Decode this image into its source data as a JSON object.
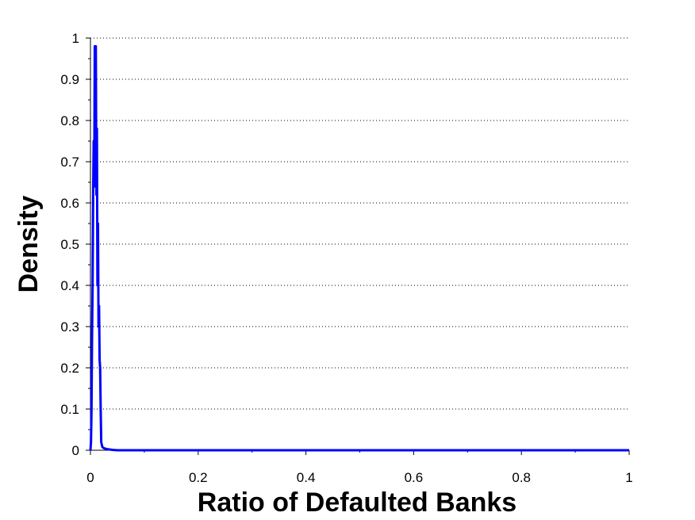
{
  "chart_data": {
    "type": "line",
    "xlabel": "Ratio of Defaulted Banks",
    "ylabel": "Density",
    "xlim": [
      0,
      1
    ],
    "ylim": [
      0,
      1
    ],
    "x_ticks": [
      0,
      0.2,
      0.4,
      0.6,
      0.8,
      1
    ],
    "x_tick_labels": [
      "0",
      "0.2",
      "0.4",
      "0.6",
      "0.8",
      "1"
    ],
    "y_ticks": [
      0,
      0.1,
      0.2,
      0.3,
      0.4,
      0.5,
      0.6,
      0.7,
      0.8,
      0.9,
      1
    ],
    "y_tick_labels": [
      "0",
      "0.1",
      "0.2",
      "0.3",
      "0.4",
      "0.5",
      "0.6",
      "0.7",
      "0.8",
      "0.9",
      "1"
    ],
    "grid": "horizontal dotted",
    "legend": "none",
    "series": [
      {
        "color": "#0000ff",
        "x": [
          0,
          0.001,
          0.002,
          0.003,
          0.004,
          0.005,
          0.006,
          0.007,
          0.008,
          0.009,
          0.01,
          0.011,
          0.012,
          0.013,
          0.014,
          0.015,
          0.016,
          0.017,
          0.018,
          0.019,
          0.02,
          0.022,
          0.025,
          0.03,
          0.04,
          0.05,
          0.1,
          0.2,
          0.4,
          0.6,
          0.8,
          1.0
        ],
        "y": [
          0,
          0.02,
          0.1,
          0.28,
          0.4,
          0.62,
          0.75,
          0.64,
          0.98,
          0.65,
          0.98,
          0.62,
          0.78,
          0.4,
          0.55,
          0.3,
          0.35,
          0.22,
          0.2,
          0.1,
          0.02,
          0.008,
          0.005,
          0.003,
          0.001,
          0,
          0,
          0,
          0,
          0,
          0,
          0
        ]
      }
    ]
  }
}
